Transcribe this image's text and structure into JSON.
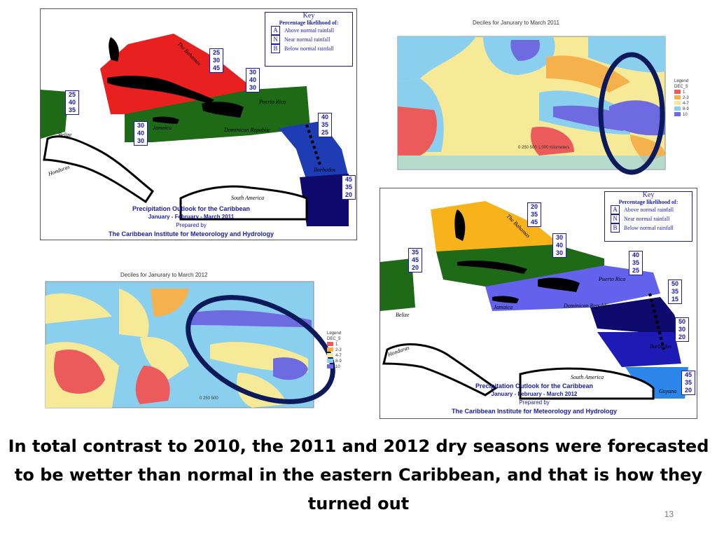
{
  "slide": {
    "caption": "In total contrast to 2010, the 2011 and 2012 dry seasons were forecasted to be wetter than normal in the eastern Caribbean, and that is how they turned out",
    "number": "13"
  },
  "key": {
    "title": "Key",
    "subtitle": "Percentage likelihood of:",
    "rows": [
      {
        "code": "A",
        "text": "Above normal rainfall"
      },
      {
        "code": "N",
        "text": "Near normal rainfall"
      },
      {
        "code": "B",
        "text": "Below normal rainfall"
      }
    ]
  },
  "outlook_2011": {
    "title": "Precipitation Outlook for the Caribbean",
    "period": "January - February - March 2011",
    "prepared": "Prepared by",
    "org": "The Caribbean Institute for Meteorology and Hydrology",
    "labels": {
      "bahamas": "The Bahamas",
      "belize": "Belize",
      "honduras": "Honduras",
      "jamaica": "Jamaica",
      "puerto_rico": "Puerto Rico",
      "dominican": "Dominican Republic",
      "barbados": "Barbados",
      "south_america": "South America"
    },
    "zones": [
      {
        "name": "bahamas-zone",
        "values": [
          "25",
          "30",
          "45"
        ]
      },
      {
        "name": "belize-zone",
        "values": [
          "25",
          "40",
          "35"
        ]
      },
      {
        "name": "jamaica-zone",
        "values": [
          "30",
          "40",
          "30"
        ]
      },
      {
        "name": "hispaniola-zone",
        "values": [
          "30",
          "40",
          "30"
        ]
      },
      {
        "name": "leeward-zone",
        "values": [
          "40",
          "35",
          "25"
        ]
      },
      {
        "name": "barbados-zone",
        "values": [
          "45",
          "35",
          "20"
        ]
      }
    ]
  },
  "outlook_2012": {
    "title": "Precipitation Outlook for the Caribbean",
    "period": "January - February - March 2012",
    "prepared": "Prepared by",
    "org": "The Caribbean Institute for Meteorology and Hydrology",
    "labels": {
      "bahamas": "The Bahamas",
      "belize": "Belize",
      "honduras": "Honduras",
      "jamaica": "Jamaica",
      "puerto_rico": "Puerto Rico",
      "dominican": "Dominican Republic",
      "barbados": "Barbados",
      "south_america": "South America",
      "guyana": "Guyana"
    },
    "zones": [
      {
        "name": "bahamas-zone",
        "values": [
          "20",
          "35",
          "45"
        ]
      },
      {
        "name": "belize-zone",
        "values": [
          "35",
          "45",
          "20"
        ]
      },
      {
        "name": "cuba-zone",
        "values": [
          "30",
          "40",
          "30"
        ]
      },
      {
        "name": "hispaniola-zone",
        "values": [
          "40",
          "35",
          "25"
        ]
      },
      {
        "name": "leeward-zone",
        "values": [
          "50",
          "35",
          "15"
        ]
      },
      {
        "name": "windward-zone",
        "values": [
          "50",
          "30",
          "20"
        ]
      },
      {
        "name": "guyana-zone",
        "values": [
          "45",
          "35",
          "20"
        ]
      }
    ]
  },
  "deciles_2011": {
    "title": "Deciles for Janurary to March 2011",
    "legend_title": "Legend",
    "legend_sub": "DEC_5",
    "legend": [
      {
        "label": "1",
        "color": "#ec5b5b"
      },
      {
        "label": "2-3",
        "color": "#f5b14c"
      },
      {
        "label": "4-7",
        "color": "#f6ea98"
      },
      {
        "label": "8-9",
        "color": "#8ad0ee"
      },
      {
        "label": "10",
        "color": "#6e6be0"
      }
    ],
    "scale": "0 250 500 1,000 Kilometers"
  },
  "deciles_2012": {
    "title": "Deciles for Janurary to March 2012",
    "legend_title": "Legend",
    "legend_sub": "DEC_5",
    "legend": [
      {
        "label": "1",
        "color": "#ec5b5b"
      },
      {
        "label": "2-3",
        "color": "#f5b14c"
      },
      {
        "label": "4-7",
        "color": "#f6ea98"
      },
      {
        "label": "8-9",
        "color": "#8ad0ee"
      },
      {
        "label": "10",
        "color": "#6e6be0"
      }
    ],
    "scale": "0 250 500"
  }
}
